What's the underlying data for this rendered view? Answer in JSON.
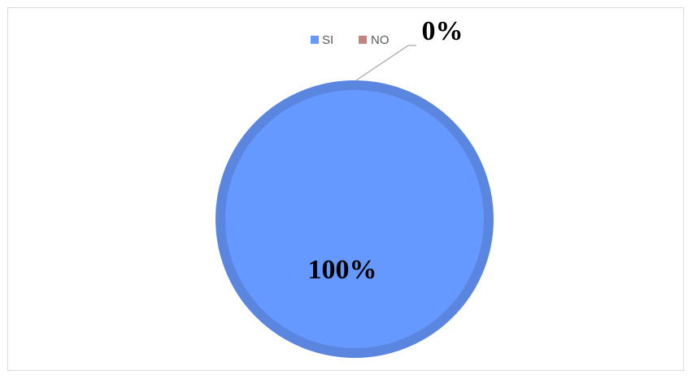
{
  "chart_data": {
    "type": "pie",
    "categories": [
      "SI",
      "NO"
    ],
    "values": [
      100,
      0
    ],
    "data_labels": [
      "100%",
      "0%"
    ],
    "colors": [
      "#6699ff",
      "#c0857f"
    ],
    "slice_border_color": "#5b86e0",
    "leader_line_color": "#a6a6a6",
    "legend_position": "top",
    "title": ""
  }
}
